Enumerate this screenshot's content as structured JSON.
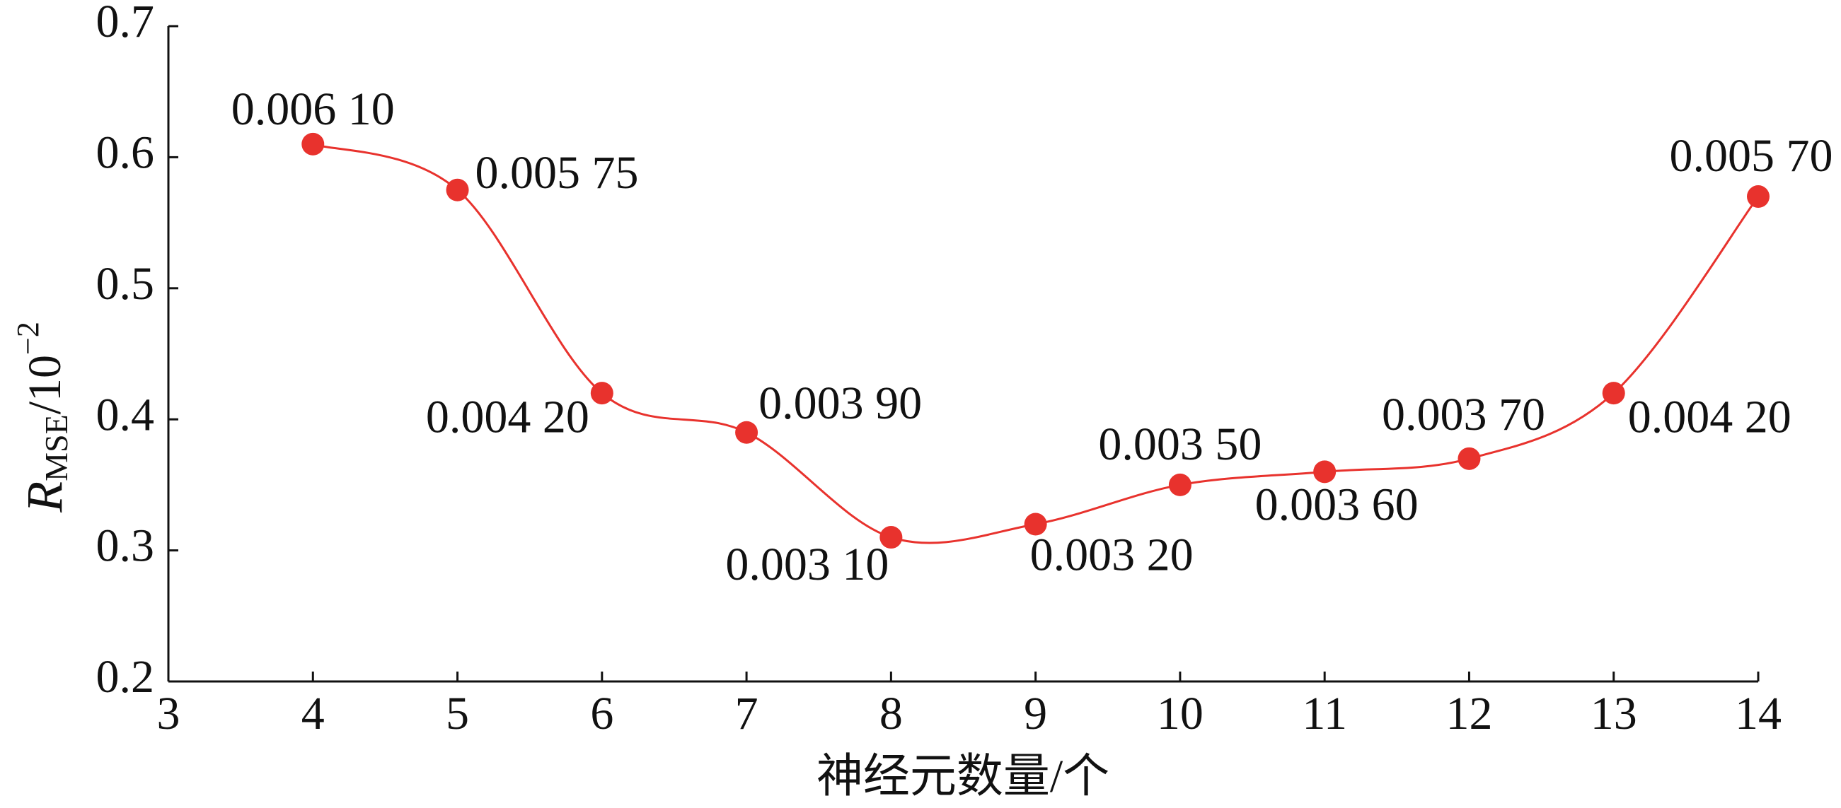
{
  "chart_data": {
    "type": "line",
    "y_label": {
      "main": "R",
      "sub": "MSE",
      "rest": "/10",
      "sup": "−2"
    },
    "x_label": "神经元数量/个",
    "x": [
      4,
      5,
      6,
      7,
      8,
      9,
      10,
      11,
      12,
      13,
      14
    ],
    "series": [
      {
        "color": "#e8322d",
        "values": [
          0.61,
          0.575,
          0.42,
          0.39,
          0.31,
          0.32,
          0.35,
          0.36,
          0.37,
          0.42,
          0.57
        ],
        "value_labels": [
          "0.006 10",
          "0.005 75",
          "0.004 20",
          "0.003 90",
          "0.003 10",
          "0.003 20",
          "0.003 50",
          "0.003 60",
          "0.003 70",
          "0.004 20",
          "0.005 70"
        ]
      }
    ],
    "xlim": [
      3,
      14
    ],
    "xticks": [
      3,
      4,
      5,
      6,
      7,
      8,
      9,
      10,
      11,
      12,
      13,
      14
    ],
    "ylim": [
      0.2,
      0.7
    ],
    "yticks": [
      0.2,
      0.3,
      0.4,
      0.5,
      0.6,
      0.7
    ]
  }
}
